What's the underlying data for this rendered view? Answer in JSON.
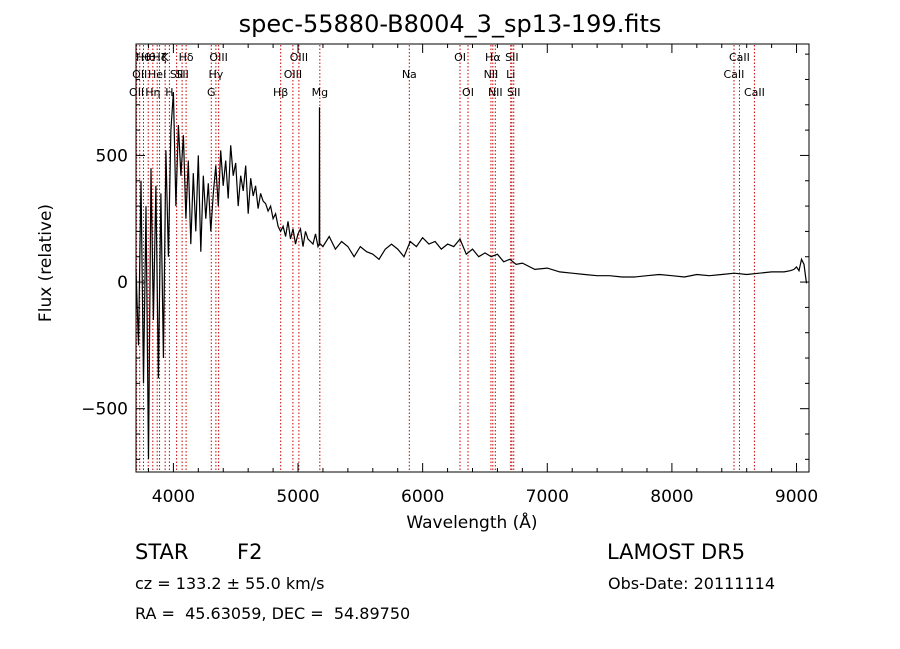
{
  "chart_data": {
    "type": "line",
    "title": "spec-55880-B8004_3_sp13-199.fits",
    "xlabel": "Wavelength (Å)",
    "ylabel": "Flux (relative)",
    "xlim": [
      3700,
      9100
    ],
    "ylim": [
      -750,
      940
    ],
    "xticks": [
      {
        "v": 4000,
        "label": "4000"
      },
      {
        "v": 5000,
        "label": "5000"
      },
      {
        "v": 6000,
        "label": "6000"
      },
      {
        "v": 7000,
        "label": "7000"
      },
      {
        "v": 8000,
        "label": "8000"
      },
      {
        "v": 9000,
        "label": "9000"
      }
    ],
    "yticks": [
      {
        "v": -500,
        "label": "−500"
      },
      {
        "v": 0,
        "label": "0"
      },
      {
        "v": 500,
        "label": "500"
      }
    ],
    "grid": false,
    "line_color": "#000000",
    "marker_color": "#cc0000",
    "series": [
      {
        "x": [
          3700,
          3720,
          3740,
          3760,
          3780,
          3800,
          3820,
          3840,
          3860,
          3880,
          3900,
          3920,
          3940,
          3960,
          3980,
          4000,
          4020,
          4040,
          4060,
          4080,
          4100,
          4120,
          4140,
          4160,
          4180,
          4200,
          4220,
          4240,
          4260,
          4280,
          4300,
          4320,
          4340,
          4360,
          4380,
          4400,
          4420,
          4440,
          4460,
          4480,
          4500,
          4520,
          4540,
          4560,
          4580,
          4600,
          4620,
          4640,
          4660,
          4680,
          4700,
          4720,
          4740,
          4760,
          4780,
          4800,
          4820,
          4840,
          4860,
          4880,
          4900,
          4920,
          4940,
          4960,
          4980,
          5000,
          5020,
          5040,
          5060,
          5080,
          5100,
          5120,
          5140,
          5160,
          5170,
          5172,
          5174,
          5180,
          5200,
          5250,
          5300,
          5350,
          5400,
          5450,
          5500,
          5550,
          5600,
          5650,
          5700,
          5750,
          5800,
          5850,
          5900,
          5950,
          6000,
          6050,
          6100,
          6150,
          6200,
          6250,
          6300,
          6350,
          6400,
          6450,
          6500,
          6550,
          6600,
          6650,
          6700,
          6750,
          6800,
          6900,
          7000,
          7100,
          7200,
          7300,
          7400,
          7500,
          7600,
          7700,
          7800,
          7900,
          8000,
          8100,
          8200,
          8300,
          8400,
          8500,
          8600,
          8700,
          8800,
          8900,
          8950,
          8980,
          9000,
          9020,
          9040,
          9060,
          9070,
          9080
        ],
        "y": [
          50,
          -250,
          400,
          -400,
          300,
          -700,
          450,
          -150,
          380,
          -380,
          350,
          -300,
          520,
          100,
          600,
          750,
          300,
          620,
          420,
          580,
          250,
          480,
          150,
          430,
          200,
          500,
          120,
          420,
          250,
          390,
          200,
          350,
          460,
          300,
          520,
          380,
          480,
          330,
          540,
          420,
          470,
          300,
          420,
          360,
          460,
          270,
          410,
          340,
          380,
          290,
          350,
          320,
          310,
          280,
          300,
          250,
          270,
          220,
          200,
          220,
          180,
          240,
          170,
          210,
          150,
          190,
          210,
          140,
          200,
          170,
          160,
          150,
          190,
          140,
          150,
          690,
          150,
          150,
          140,
          180,
          130,
          160,
          140,
          100,
          140,
          120,
          110,
          90,
          130,
          150,
          130,
          100,
          160,
          140,
          175,
          150,
          160,
          130,
          150,
          140,
          170,
          110,
          130,
          100,
          115,
          100,
          110,
          80,
          90,
          70,
          75,
          50,
          55,
          40,
          35,
          30,
          25,
          25,
          20,
          20,
          25,
          30,
          25,
          20,
          30,
          25,
          30,
          35,
          30,
          35,
          40,
          40,
          45,
          50,
          60,
          45,
          90,
          70,
          30,
          -5
        ]
      }
    ],
    "lines": [
      {
        "x": 3705,
        "label": "OII",
        "row": 2
      },
      {
        "x": 3730,
        "label": "OII",
        "row": 1
      },
      {
        "x": 3760,
        "label": "Hθ",
        "row": 0
      },
      {
        "x": 3798,
        "label": "Hθ",
        "row": 0
      },
      {
        "x": 3835,
        "label": "Hη",
        "row": 2
      },
      {
        "x": 3870,
        "label": "HeI",
        "row": 1
      },
      {
        "x": 3889,
        "label": "Hζ",
        "row": 0
      },
      {
        "x": 3934,
        "label": "K",
        "row": 0
      },
      {
        "x": 3968,
        "label": "H",
        "row": 2
      },
      {
        "x": 4026,
        "label": "SII",
        "row": 1
      },
      {
        "x": 4070,
        "label": "SII",
        "row": 1
      },
      {
        "x": 4102,
        "label": "Hδ",
        "row": 0
      },
      {
        "x": 4304,
        "label": "G",
        "row": 2
      },
      {
        "x": 4341,
        "label": "Hγ",
        "row": 1
      },
      {
        "x": 4363,
        "label": "OIII",
        "row": 0
      },
      {
        "x": 4861,
        "label": "Hβ",
        "row": 2
      },
      {
        "x": 4959,
        "label": "OIII",
        "row": 1
      },
      {
        "x": 5007,
        "label": "OIII",
        "row": 0
      },
      {
        "x": 5175,
        "label": "Mg",
        "row": 2
      },
      {
        "x": 5893,
        "label": "Na",
        "row": 1
      },
      {
        "x": 6300,
        "label": "OI",
        "row": 0
      },
      {
        "x": 6364,
        "label": "OI",
        "row": 2
      },
      {
        "x": 6548,
        "label": "NII",
        "row": 1
      },
      {
        "x": 6563,
        "label": "Hα",
        "row": 0
      },
      {
        "x": 6583,
        "label": "NII",
        "row": 2
      },
      {
        "x": 6707,
        "label": "Li",
        "row": 1
      },
      {
        "x": 6716,
        "label": "SII",
        "row": 0
      },
      {
        "x": 6731,
        "label": "SII",
        "row": 2
      },
      {
        "x": 8498,
        "label": "CaII",
        "row": 1
      },
      {
        "x": 8542,
        "label": "CaII",
        "row": 0
      },
      {
        "x": 8662,
        "label": "CaII",
        "row": 2
      }
    ]
  },
  "footer": {
    "class_label": "STAR",
    "subclass_label": "F2",
    "survey_label": "LAMOST DR5",
    "cz_text": "cz = 133.2 ± 55.0 km/s",
    "obsdate_text": "Obs-Date: 20111114",
    "radec_text": "RA =  45.63059, DEC =  54.89750"
  }
}
